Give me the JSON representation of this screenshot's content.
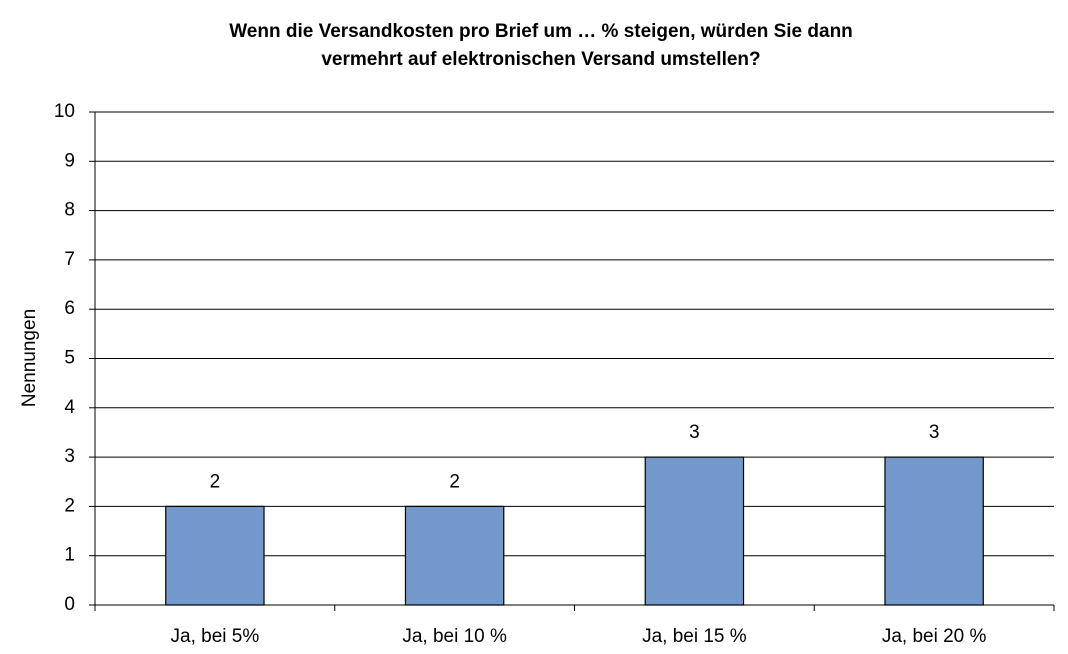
{
  "chart_data": {
    "type": "bar",
    "title": [
      "Wenn die Versandkosten pro Brief um … % steigen, würden Sie dann",
      "vermehrt auf elektronischen Versand umstellen?"
    ],
    "y_label": "Nennungen",
    "categories": [
      "Ja, bei 5%",
      "Ja, bei 10 %",
      "Ja, bei 15 %",
      "Ja, bei 20 %"
    ],
    "values": [
      2,
      2,
      3,
      3
    ],
    "color": "#7399cc",
    "ylim": [
      0,
      10
    ],
    "yticks": [
      0,
      1,
      2,
      3,
      4,
      5,
      6,
      7,
      8,
      9,
      10
    ],
    "grid": true
  }
}
